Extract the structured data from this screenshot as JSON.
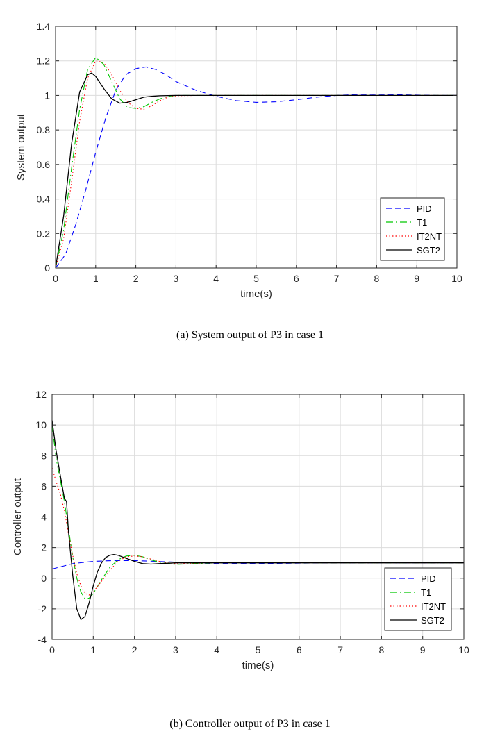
{
  "figures": [
    {
      "caption": "(a) System output of P3 in case 1",
      "chart_data": {
        "type": "line",
        "xlabel": "time(s)",
        "ylabel": "System output",
        "xlim": [
          0,
          10
        ],
        "ylim": [
          0,
          1.4
        ],
        "xticks": [
          0,
          1,
          2,
          3,
          4,
          5,
          6,
          7,
          8,
          9,
          10
        ],
        "yticks": [
          0,
          0.2,
          0.4,
          0.6,
          0.8,
          1,
          1.2,
          1.4
        ],
        "grid": true,
        "legend_position": "bottom-right",
        "series": [
          {
            "name": "PID",
            "color": "#0000ff",
            "dash": "dashed",
            "x": [
              0,
              0.25,
              0.5,
              0.75,
              1.0,
              1.25,
              1.5,
              1.75,
              2.0,
              2.25,
              2.5,
              2.75,
              3.0,
              3.5,
              4.0,
              4.5,
              5.0,
              5.5,
              6.0,
              6.5,
              7.0,
              7.5,
              8.0,
              8.5,
              9.0,
              9.5,
              10.0
            ],
            "y": [
              0,
              0.08,
              0.25,
              0.45,
              0.67,
              0.87,
              1.03,
              1.12,
              1.155,
              1.165,
              1.15,
              1.12,
              1.08,
              1.03,
              0.995,
              0.97,
              0.96,
              0.963,
              0.975,
              0.99,
              1.0,
              1.005,
              1.006,
              1.004,
              1.002,
              1.0,
              1.0
            ]
          },
          {
            "name": "T1",
            "color": "#00c800",
            "dash": "dashdot",
            "x": [
              0,
              0.2,
              0.4,
              0.6,
              0.8,
              1.0,
              1.2,
              1.4,
              1.6,
              1.8,
              2.0,
              2.2,
              2.4,
              2.6,
              2.8,
              3.0,
              3.5,
              4.0,
              10.0
            ],
            "y": [
              0,
              0.22,
              0.58,
              0.92,
              1.15,
              1.22,
              1.18,
              1.08,
              0.98,
              0.93,
              0.925,
              0.935,
              0.96,
              0.98,
              0.995,
              1.0,
              1.0,
              1.0,
              1.0
            ]
          },
          {
            "name": "IT2NT",
            "color": "#ff0000",
            "dash": "dotted",
            "x": [
              0,
              0.2,
              0.4,
              0.6,
              0.8,
              1.0,
              1.2,
              1.4,
              1.6,
              1.8,
              2.0,
              2.2,
              2.4,
              2.6,
              2.8,
              3.0,
              3.5,
              4.0,
              10.0
            ],
            "y": [
              0,
              0.17,
              0.5,
              0.85,
              1.1,
              1.2,
              1.19,
              1.12,
              1.03,
              0.96,
              0.925,
              0.92,
              0.94,
              0.97,
              0.99,
              0.998,
              1.0,
              1.0,
              1.0
            ]
          },
          {
            "name": "SGT2",
            "color": "#000000",
            "dash": "solid",
            "x": [
              0,
              0.2,
              0.4,
              0.6,
              0.8,
              0.9,
              1.0,
              1.2,
              1.4,
              1.6,
              1.8,
              2.0,
              2.2,
              2.4,
              2.6,
              3.0,
              3.5,
              4.0,
              10.0
            ],
            "y": [
              0,
              0.3,
              0.72,
              1.02,
              1.12,
              1.13,
              1.11,
              1.04,
              0.98,
              0.955,
              0.96,
              0.975,
              0.99,
              0.995,
              0.998,
              1.0,
              1.0,
              1.0,
              1.0
            ]
          }
        ]
      }
    },
    {
      "caption": "(b) Controller output of P3 in case 1",
      "chart_data": {
        "type": "line",
        "xlabel": "time(s)",
        "ylabel": "Controller output",
        "xlim": [
          0,
          10
        ],
        "ylim": [
          -4,
          12
        ],
        "xticks": [
          0,
          1,
          2,
          3,
          4,
          5,
          6,
          7,
          8,
          9,
          10
        ],
        "yticks": [
          -4,
          -2,
          0,
          2,
          4,
          6,
          8,
          10,
          12
        ],
        "grid": true,
        "legend_position": "bottom-right",
        "series": [
          {
            "name": "PID",
            "color": "#0000ff",
            "dash": "dashed",
            "x": [
              0,
              0.5,
              1.0,
              1.5,
              2.0,
              2.5,
              3.0,
              4.0,
              5.0,
              6.0,
              7.0,
              8.0,
              9.0,
              10.0
            ],
            "y": [
              0.6,
              0.95,
              1.1,
              1.15,
              1.15,
              1.1,
              1.05,
              0.95,
              0.95,
              0.98,
              1.0,
              1.0,
              1.0,
              1.0
            ]
          },
          {
            "name": "T1",
            "color": "#00c800",
            "dash": "dashdot",
            "x": [
              0,
              0.1,
              0.2,
              0.3,
              0.4,
              0.5,
              0.6,
              0.7,
              0.8,
              0.9,
              1.0,
              1.2,
              1.4,
              1.6,
              1.8,
              2.0,
              2.2,
              2.4,
              2.6,
              2.8,
              3.0,
              3.5,
              4.0,
              10.0
            ],
            "y": [
              10.0,
              7.8,
              6.4,
              5.0,
              3.2,
              1.4,
              0.0,
              -0.9,
              -1.35,
              -1.3,
              -1.0,
              -0.1,
              0.7,
              1.2,
              1.45,
              1.5,
              1.4,
              1.2,
              1.05,
              0.95,
              0.9,
              0.95,
              1.0,
              1.0
            ]
          },
          {
            "name": "IT2NT",
            "color": "#ff0000",
            "dash": "dotted",
            "x": [
              0,
              0.1,
              0.2,
              0.3,
              0.4,
              0.5,
              0.6,
              0.7,
              0.8,
              0.9,
              1.0,
              1.2,
              1.4,
              1.6,
              1.8,
              2.0,
              2.2,
              2.4,
              2.6,
              2.8,
              3.0,
              3.5,
              4.0,
              10.0
            ],
            "y": [
              7.2,
              6.3,
              5.5,
              4.4,
              2.9,
              1.5,
              0.3,
              -0.5,
              -1.0,
              -1.1,
              -0.9,
              -0.2,
              0.5,
              1.1,
              1.4,
              1.45,
              1.4,
              1.25,
              1.1,
              1.0,
              0.95,
              0.97,
              1.0,
              1.0
            ]
          },
          {
            "name": "SGT2",
            "color": "#000000",
            "dash": "solid",
            "x": [
              0,
              0.05,
              0.1,
              0.2,
              0.3,
              0.35,
              0.4,
              0.5,
              0.6,
              0.7,
              0.8,
              0.9,
              1.0,
              1.1,
              1.2,
              1.3,
              1.4,
              1.5,
              1.6,
              1.8,
              2.0,
              2.2,
              2.4,
              2.6,
              3.0,
              3.5,
              4.0,
              10.0
            ],
            "y": [
              10.3,
              9.3,
              8.3,
              6.7,
              5.2,
              5.0,
              3.0,
              0.2,
              -2.0,
              -2.7,
              -2.5,
              -1.6,
              -0.5,
              0.4,
              1.0,
              1.35,
              1.5,
              1.55,
              1.5,
              1.3,
              1.1,
              0.95,
              0.92,
              0.95,
              1.0,
              1.0,
              1.0,
              1.0
            ]
          }
        ]
      }
    }
  ]
}
